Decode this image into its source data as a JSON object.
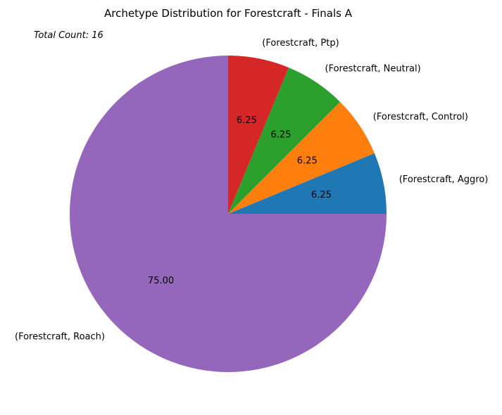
{
  "chart_data": {
    "type": "pie",
    "title": "Archetype Distribution for Forestcraft - Finals A",
    "annotation": "Total Count: 16",
    "slices": [
      {
        "label": "(Forestcraft, Aggro)",
        "value": 6.25,
        "display": "6.25",
        "color": "#1f77b4"
      },
      {
        "label": "(Forestcraft, Control)",
        "value": 6.25,
        "display": "6.25",
        "color": "#ff7f0e"
      },
      {
        "label": "(Forestcraft, Neutral)",
        "value": 6.25,
        "display": "6.25",
        "color": "#2ca02c"
      },
      {
        "label": "(Forestcraft, Ptp)",
        "value": 6.25,
        "display": "6.25",
        "color": "#d62728"
      },
      {
        "label": "(Forestcraft, Roach)",
        "value": 75.0,
        "display": "75.00",
        "color": "#9467bd"
      }
    ]
  }
}
